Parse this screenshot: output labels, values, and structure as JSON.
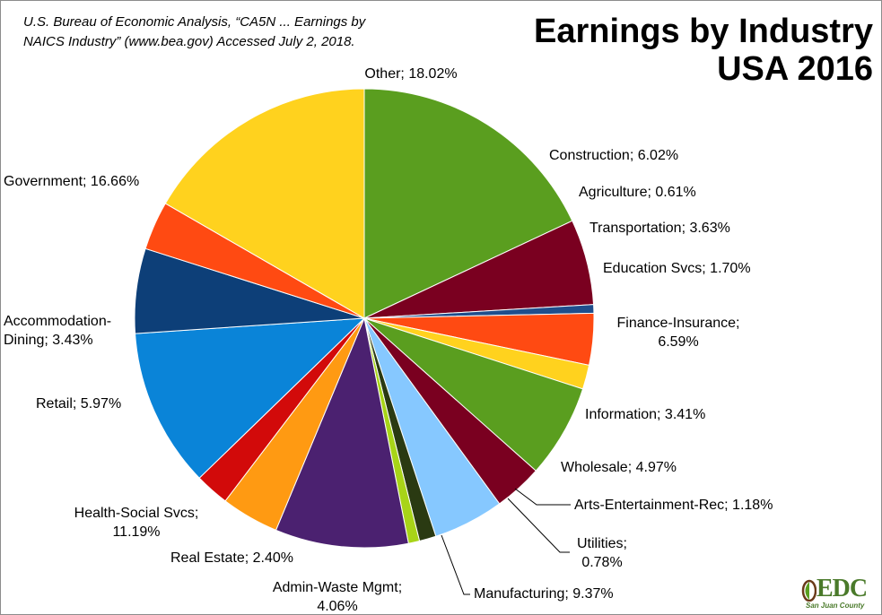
{
  "source": {
    "line1": "U.S. Bureau of Economic Analysis, “CA5N ... Earnings by",
    "line2": "NAICS Industry” (www.bea.gov) Accessed July 2, 2018."
  },
  "title": {
    "line1": "Earnings by Industry",
    "line2": "USA 2016"
  },
  "logo": {
    "text": "EDC",
    "subtitle": "San Juan County"
  },
  "chart_data": {
    "type": "pie",
    "start": "clockwise from top",
    "slices": [
      {
        "name": "Other",
        "value": 18.02,
        "label_lines": [
          "Other; 18.02%"
        ],
        "color": "#5a9e1f"
      },
      {
        "name": "Construction",
        "value": 6.02,
        "label_lines": [
          "Construction; 6.02%"
        ],
        "color": "#7a0020"
      },
      {
        "name": "Agriculture",
        "value": 0.61,
        "label_lines": [
          "Agriculture; 0.61%"
        ],
        "color": "#1f4e8c"
      },
      {
        "name": "Transportation",
        "value": 3.63,
        "label_lines": [
          "Transportation; 3.63%"
        ],
        "color": "#ff4a12"
      },
      {
        "name": "Education Svcs",
        "value": 1.7,
        "label_lines": [
          "Education Svcs; 1.70%"
        ],
        "color": "#ffd21e"
      },
      {
        "name": "Finance-Insurance",
        "value": 6.59,
        "label_lines": [
          "Finance-Insurance;",
          "6.59%"
        ],
        "color": "#5a9e1f"
      },
      {
        "name": "Information",
        "value": 3.41,
        "label_lines": [
          "Information; 3.41%"
        ],
        "color": "#7a0020"
      },
      {
        "name": "Wholesale",
        "value": 4.97,
        "label_lines": [
          "Wholesale; 4.97%"
        ],
        "color": "#86c8ff"
      },
      {
        "name": "Arts-Entertainment-Rec",
        "value": 1.18,
        "label_lines": [
          "Arts-Entertainment-Rec; 1.18%"
        ],
        "color": "#2a3a12"
      },
      {
        "name": "Utilities",
        "value": 0.78,
        "label_lines": [
          "Utilities;",
          "0.78%"
        ],
        "color": "#a8d418"
      },
      {
        "name": "Manufacturing",
        "value": 9.37,
        "label_lines": [
          "Manufacturing;  9.37%"
        ],
        "color": "#4b2170"
      },
      {
        "name": "Admin-Waste Mgmt",
        "value": 4.06,
        "label_lines": [
          "Admin-Waste Mgmt;",
          "4.06%"
        ],
        "color": "#ff9a12"
      },
      {
        "name": "Real Estate",
        "value": 2.4,
        "label_lines": [
          "Real Estate; 2.40%"
        ],
        "color": "#d20a0a"
      },
      {
        "name": "Health-Social Svcs",
        "value": 11.19,
        "label_lines": [
          "Health-Social Svcs;",
          "11.19%"
        ],
        "color": "#0a84d8"
      },
      {
        "name": "Retail",
        "value": 5.97,
        "label_lines": [
          "Retail; 5.97%"
        ],
        "color": "#0d3f78"
      },
      {
        "name": "Accommodation-Dining",
        "value": 3.43,
        "label_lines": [
          "Accommodation-",
          "Dining; 3.43%"
        ],
        "color": "#ff4a12"
      },
      {
        "name": "Government",
        "value": 16.66,
        "label_lines": [
          "Government; 16.66%"
        ],
        "color": "#ffd21e"
      }
    ]
  }
}
